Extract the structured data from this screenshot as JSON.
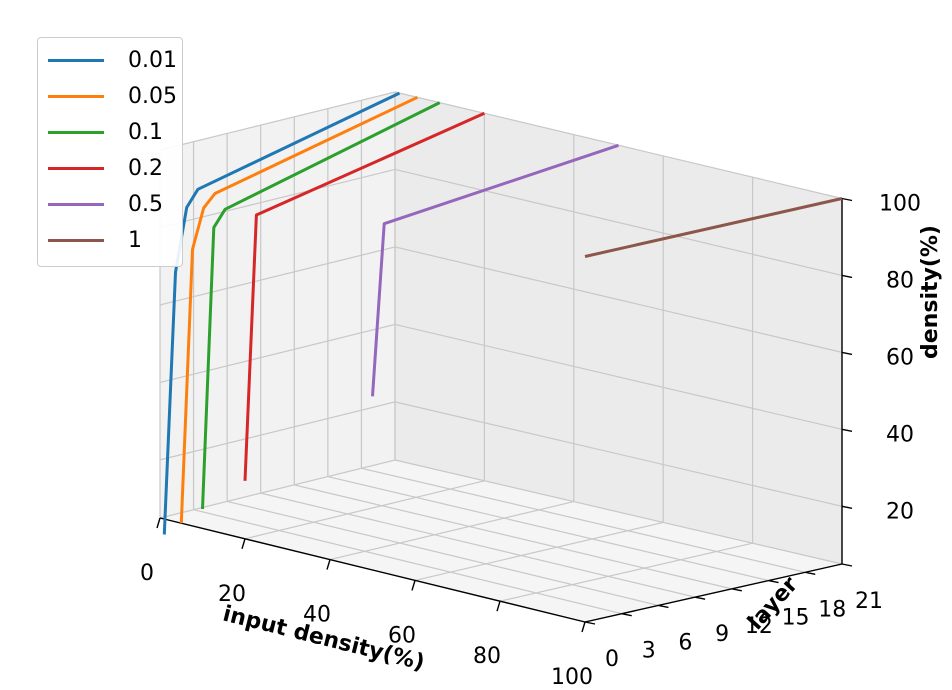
{
  "chart_data": {
    "type": "line3d",
    "xlabel": "input density(%)",
    "ylabel": "layer",
    "zlabel": "density(%)",
    "x_ticks": [
      "0",
      "20",
      "40",
      "60",
      "80",
      "100"
    ],
    "y_ticks": [
      "0",
      "3",
      "6",
      "9",
      "12",
      "15",
      "18",
      "21"
    ],
    "z_ticks": [
      "20",
      "40",
      "60",
      "80",
      "100"
    ],
    "xlim": [
      0,
      100
    ],
    "ylim": [
      0,
      21
    ],
    "zlim": [
      5,
      100
    ],
    "grid": true,
    "legend_position": "top-left",
    "series": [
      {
        "name": "0.01",
        "color": "#1f77b4",
        "input_density": 1,
        "layer": [
          0,
          1,
          2,
          3,
          21
        ],
        "density": [
          1,
          68,
          84,
          88,
          100
        ]
      },
      {
        "name": "0.05",
        "color": "#ff7f0e",
        "input_density": 5,
        "layer": [
          0,
          1,
          2,
          3,
          21
        ],
        "density": [
          5,
          75,
          85,
          88,
          100
        ]
      },
      {
        "name": "0.1",
        "color": "#2ca02c",
        "input_density": 10,
        "layer": [
          0,
          1,
          2,
          21
        ],
        "density": [
          10,
          82,
          86,
          100
        ]
      },
      {
        "name": "0.2",
        "color": "#d62728",
        "input_density": 20,
        "layer": [
          0,
          1,
          21
        ],
        "density": [
          20,
          88,
          100
        ]
      },
      {
        "name": "0.5",
        "color": "#9467bd",
        "input_density": 50,
        "layer": [
          0,
          1,
          21
        ],
        "density": [
          50,
          94,
          100
        ]
      },
      {
        "name": "1",
        "color": "#8c564b",
        "input_density": 100,
        "layer": [
          0,
          21
        ],
        "density": [
          100,
          100
        ]
      }
    ]
  }
}
